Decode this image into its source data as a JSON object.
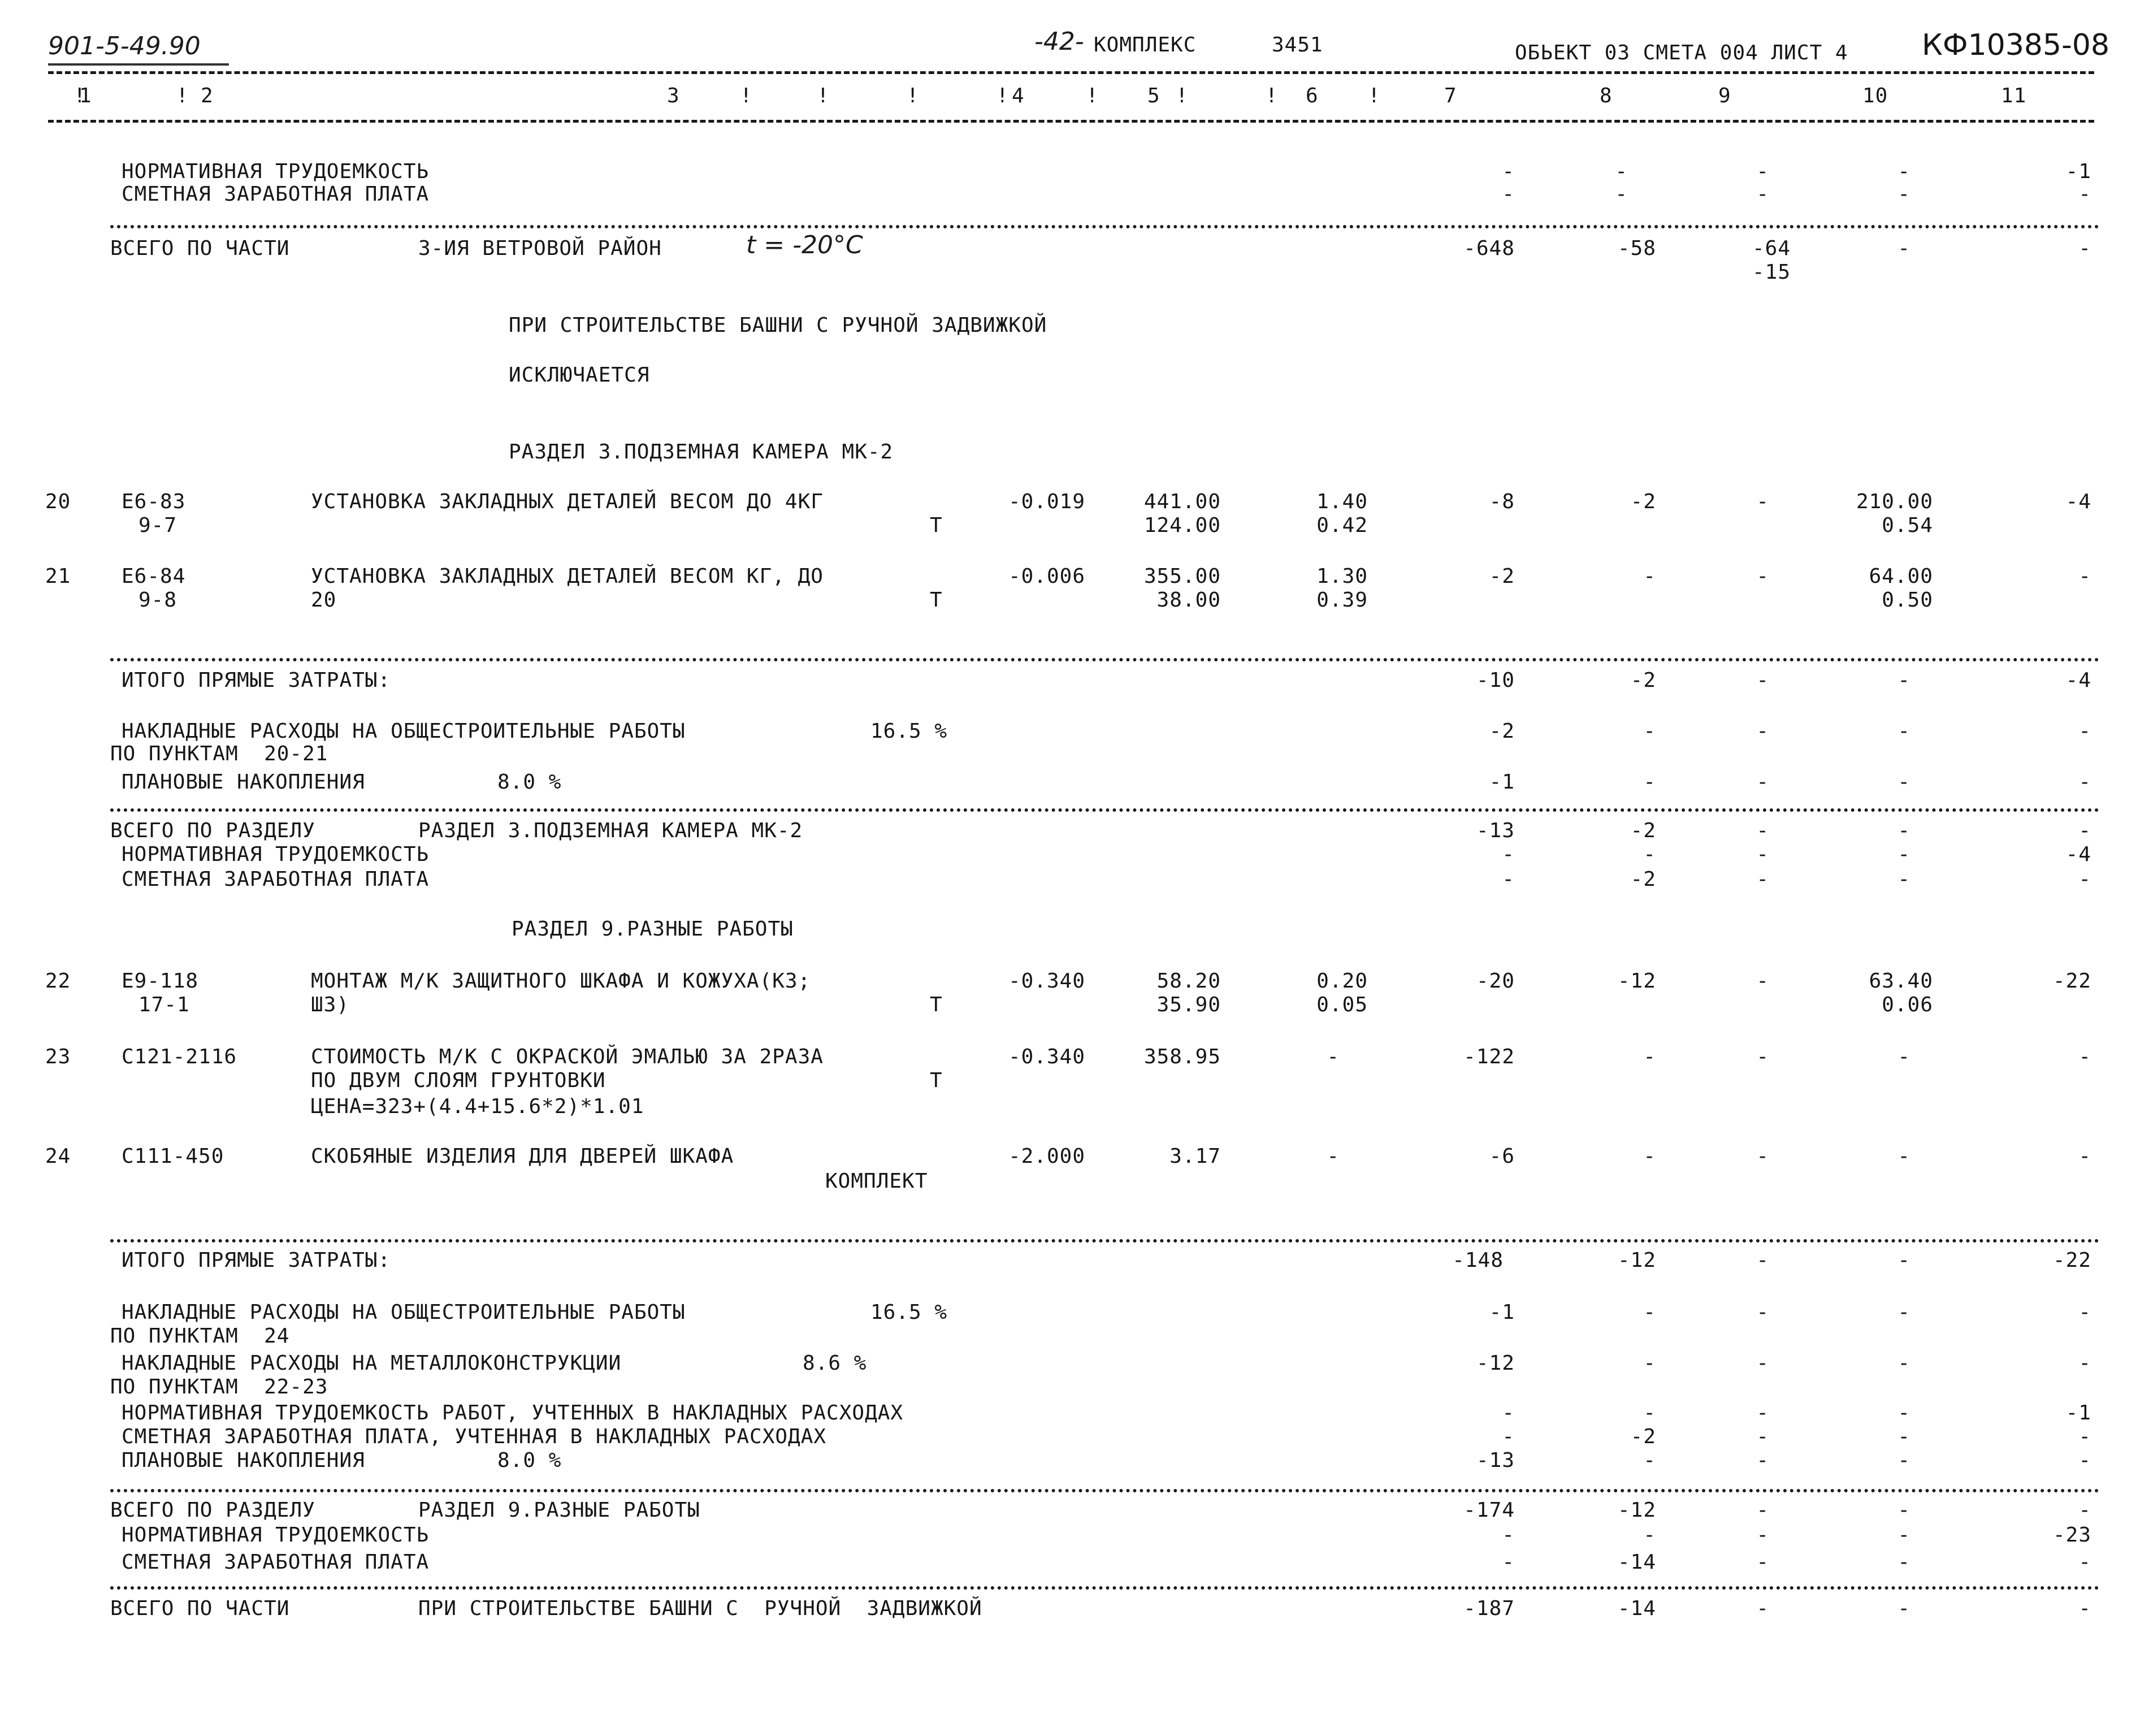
{
  "header": {
    "doc_code": "901-5-49.90",
    "page_label": "-42-",
    "complex_label": "КОМПЛЕКС",
    "complex_no": "3451",
    "object_info": "ОБЬЕКТ 03 СМЕТА 004 ЛИСТ 4",
    "sheet_code": "КФ10385-08"
  },
  "columns": [
    "1",
    "2",
    "3",
    "4",
    "5",
    "6",
    "7",
    "8",
    "9",
    "10",
    "11"
  ],
  "labels": {
    "norm_labor": "НОРМАТИВНАЯ ТРУДОЕМКОСТЬ",
    "est_wage": "СМЕТНАЯ ЗАРАБОТНАЯ ПЛАТА",
    "total_part": "ВСЕГО ПО ЧАСТИ",
    "wind_region": "3-ИЯ ВЕТРОВОЙ РАЙОН",
    "temp_note": "t = -20°C",
    "manual_valve": "ПРИ СТРОИТЕЛЬСТВЕ БАШНИ С РУЧНОЙ ЗАДВИЖКОЙ",
    "excluded": "ИСКЛЮЧАЕТСЯ",
    "section3": "РАЗДЕЛ 3.ПОДЗЕМНАЯ КАМЕРА МК-2",
    "direct_costs": "ИТОГО ПРЯМЫЕ ЗАТРАТЫ:",
    "overhead_general": "НАКЛАДНЫЕ РАСХОДЫ НА ОБЩЕСТРОИТЕЛЬНЫЕ РАБОТЫ",
    "overhead_pct": "16.5 %",
    "by_items_20_21": "ПО ПУНКТАМ  20-21",
    "planned_savings": "ПЛАНОВЫЕ НАКОПЛЕНИЯ",
    "savings_pct": "8.0 %",
    "total_section": "ВСЕГО ПО РАЗДЕЛУ",
    "section9": "РАЗДЕЛ 9.РАЗНЫЕ РАБОТЫ",
    "by_items_24": "ПО ПУНКТАМ  24",
    "overhead_metal": "НАКЛАДНЫЕ РАСХОДЫ НА МЕТАЛЛОКОНСТРУКЦИИ",
    "metal_pct": "8.6 %",
    "by_items_22_23": "ПО ПУНКТАМ  22-23",
    "norm_labor_overhead": "НОРМАТИВНАЯ ТРУДОЕМКОСТЬ РАБОТ, УЧТЕННЫХ В НАКЛАДНЫХ РАСХОДАХ",
    "wage_overhead": "СМЕТНАЯ ЗАРАБОТНАЯ ПЛАТА, УЧТЕННАЯ В НАКЛАДНЫХ РАСХОДАХ",
    "total_part_manual": "ПРИ СТРОИТЕЛЬСТВЕ БАШНИ С  РУЧНОЙ  ЗАДВИЖКОЙ"
  },
  "rows": [
    {
      "no": "20",
      "code": "Е6-83",
      "sub": "9-7",
      "desc": "УСТАНОВКА ЗАКЛАДНЫХ ДЕТАЛЕЙ ВЕСОМ ДО 4КГ",
      "desc2": "",
      "unit": "Т",
      "qty": "-0.019",
      "p1": "441.00",
      "p2": "124.00",
      "w1": "1.40",
      "w2": "0.42",
      "c7": "-8",
      "c8": "-2",
      "c9": "-",
      "c10": "210.00",
      "c10b": "0.54",
      "c11": "-4"
    },
    {
      "no": "21",
      "code": "Е6-84",
      "sub": "9-8",
      "desc": "УСТАНОВКА ЗАКЛАДНЫХ ДЕТАЛЕЙ ВЕСОМ КГ, ДО",
      "desc2": "20",
      "unit": "Т",
      "qty": "-0.006",
      "p1": "355.00",
      "p2": "38.00",
      "w1": "1.30",
      "w2": "0.39",
      "c7": "-2",
      "c8": "-",
      "c9": "-",
      "c10": "64.00",
      "c10b": "0.50",
      "c11": "-"
    },
    {
      "no": "22",
      "code": "Е9-118",
      "sub": "17-1",
      "desc": "МОНТАЖ М/К ЗАЩИТНОГО ШКАФА И КОЖУХА(КЗ;",
      "desc2": "ШЗ)",
      "unit": "Т",
      "qty": "-0.340",
      "p1": "58.20",
      "p2": "35.90",
      "w1": "0.20",
      "w2": "0.05",
      "c7": "-20",
      "c8": "-12",
      "c9": "-",
      "c10": "63.40",
      "c10b": "0.06",
      "c11": "-22"
    },
    {
      "no": "23",
      "code": "С121-2116",
      "sub": "",
      "desc": "СТОИМОСТЬ М/К С ОКРАСКОЙ ЭМАЛЬЮ ЗА 2РАЗА",
      "desc2": "ПО ДВУМ СЛОЯМ ГРУНТОВКИ",
      "desc3": "ЦЕНА=323+(4.4+15.6*2)*1.01",
      "unit": "Т",
      "qty": "-0.340",
      "p1": "358.95",
      "p2": "",
      "w1": "-",
      "w2": "",
      "c7": "-122",
      "c8": "-",
      "c9": "-",
      "c10": "-",
      "c10b": "",
      "c11": "-"
    },
    {
      "no": "24",
      "code": "С111-450",
      "sub": "",
      "desc": "СКОБЯНЫЕ ИЗДЕЛИЯ ДЛЯ ДВЕРЕЙ ШКАФА",
      "desc2": "",
      "unit": "КОМПЛЕКТ",
      "qty": "-2.000",
      "p1": "3.17",
      "p2": "",
      "w1": "-",
      "w2": "",
      "c7": "-6",
      "c8": "-",
      "c9": "-",
      "c10": "-",
      "c10b": "",
      "c11": "-"
    }
  ],
  "totals": {
    "top_norm": {
      "c7": "-",
      "c8": "-",
      "c9": "-",
      "c10": "-",
      "c11": "-1"
    },
    "top_wage": {
      "c7": "-",
      "c8": "-",
      "c9": "-",
      "c10": "-",
      "c11": "-"
    },
    "part_wind": {
      "c7": "-648",
      "c8": "-58",
      "c9": "-64",
      "c9b": "-15",
      "c10": "-",
      "c11": "-"
    },
    "s3_direct": {
      "c7": "-10",
      "c8": "-2",
      "c9": "-",
      "c10": "-",
      "c11": "-4"
    },
    "s3_overhead": {
      "c7": "-2",
      "c8": "-",
      "c9": "-",
      "c10": "-",
      "c11": "-"
    },
    "s3_savings": {
      "c7": "-1",
      "c8": "-",
      "c9": "-",
      "c10": "-",
      "c11": "-"
    },
    "s3_total": {
      "c7": "-13",
      "c8": "-2",
      "c9": "-",
      "c10": "-",
      "c11": "-"
    },
    "s3_norm": {
      "c7": "-",
      "c8": "-",
      "c9": "-",
      "c10": "-",
      "c11": "-4"
    },
    "s3_wage": {
      "c7": "-",
      "c8": "-2",
      "c9": "-",
      "c10": "-",
      "c11": "-"
    },
    "s9_direct": {
      "c7": "-148",
      "c8": "-12",
      "c9": "-",
      "c10": "-",
      "c11": "-22"
    },
    "s9_overhead": {
      "c7": "-1",
      "c8": "-",
      "c9": "-",
      "c10": "-",
      "c11": "-"
    },
    "s9_metal": {
      "c7": "-12",
      "c8": "-",
      "c9": "-",
      "c10": "-",
      "c11": "-"
    },
    "s9_norm_oh": {
      "c7": "-",
      "c8": "-",
      "c9": "-",
      "c10": "-",
      "c11": "-1"
    },
    "s9_wage_oh": {
      "c7": "-",
      "c8": "-2",
      "c9": "-",
      "c10": "-",
      "c11": "-"
    },
    "s9_savings": {
      "c7": "-13",
      "c8": "-",
      "c9": "-",
      "c10": "-",
      "c11": "-"
    },
    "s9_total": {
      "c7": "-174",
      "c8": "-12",
      "c9": "-",
      "c10": "-",
      "c11": "-"
    },
    "s9_norm": {
      "c7": "-",
      "c8": "-",
      "c9": "-",
      "c10": "-",
      "c11": "-23"
    },
    "s9_wage": {
      "c7": "-",
      "c8": "-14",
      "c9": "-",
      "c10": "-",
      "c11": "-"
    },
    "part_manual": {
      "c7": "-187",
      "c8": "-14",
      "c9": "-",
      "c10": "-",
      "c11": "-"
    }
  }
}
